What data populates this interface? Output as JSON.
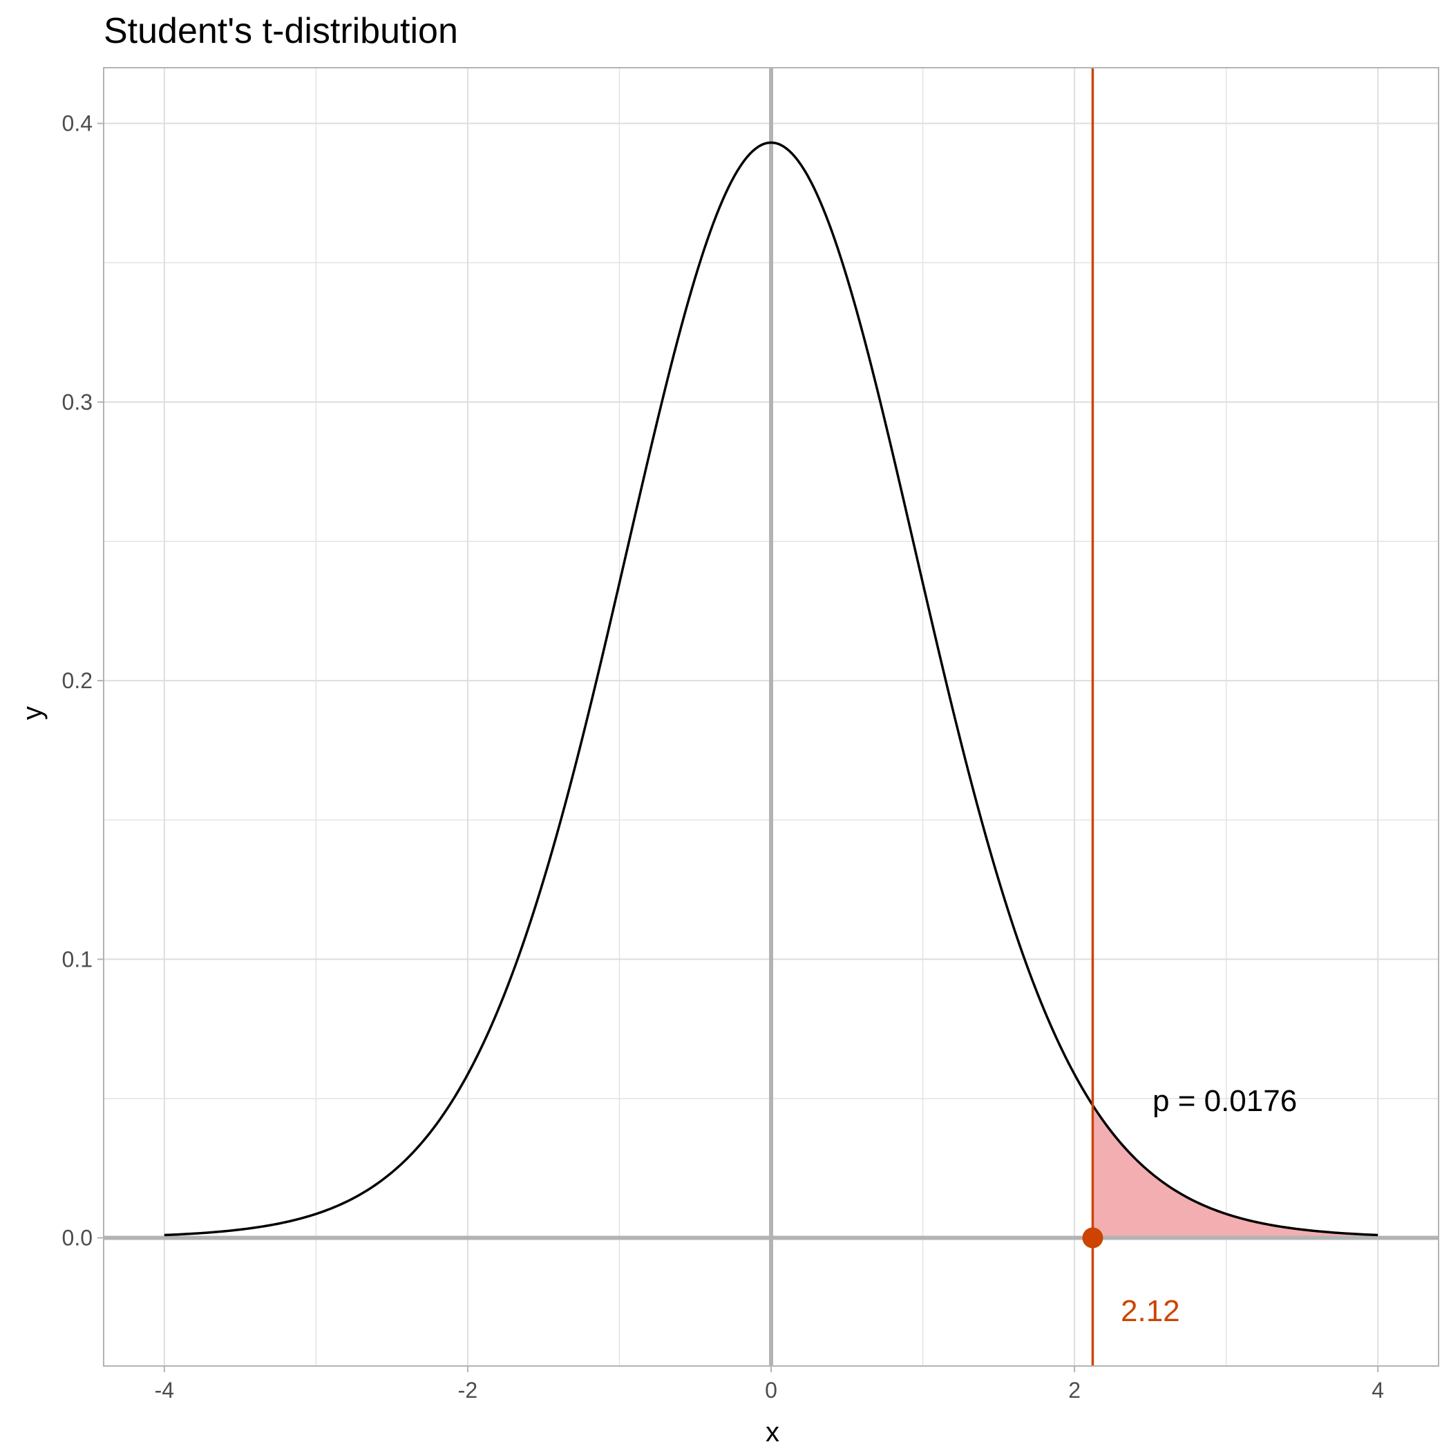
{
  "chart_data": {
    "type": "area",
    "title": "Student's t-distribution",
    "xlabel": "x",
    "ylabel": "y",
    "xlim": [
      -4.4,
      4.4
    ],
    "ylim": [
      -0.046,
      0.42
    ],
    "x_ticks": [
      -4,
      -2,
      0,
      2,
      4
    ],
    "x_tick_labels": [
      "-4",
      "-2",
      "0",
      "2",
      "4"
    ],
    "y_ticks": [
      0.0,
      0.1,
      0.2,
      0.3,
      0.4
    ],
    "y_tick_labels": [
      "0.0",
      "0.1",
      "0.2",
      "0.3",
      "0.4"
    ],
    "grid": true,
    "curve": {
      "x": [
        -4.0,
        -3.5,
        -3.0,
        -2.8,
        -2.6,
        -2.4,
        -2.2,
        -2.0,
        -1.8,
        -1.6,
        -1.4,
        -1.2,
        -1.0,
        -0.8,
        -0.6,
        -0.4,
        -0.2,
        0.0,
        0.2,
        0.4,
        0.6,
        0.8,
        1.0,
        1.2,
        1.4,
        1.6,
        1.8,
        2.0,
        2.12,
        2.2,
        2.4,
        2.6,
        2.8,
        3.0,
        3.5,
        4.0
      ],
      "y": [
        0.0003,
        0.0012,
        0.0047,
        0.0082,
        0.0139,
        0.0228,
        0.0362,
        0.0555,
        0.0804,
        0.1113,
        0.1475,
        0.1872,
        0.2283,
        0.2677,
        0.3028,
        0.3302,
        0.3477,
        0.3981,
        0.3477,
        0.3302,
        0.3028,
        0.2677,
        0.2283,
        0.1872,
        0.1475,
        0.1113,
        0.0804,
        0.0555,
        0.0424,
        0.0362,
        0.0228,
        0.0139,
        0.0082,
        0.0047,
        0.0012,
        0.0003
      ]
    },
    "critical_value": 2.12,
    "critical_value_label": "2.12",
    "p_value_label": "p = 0.0176",
    "shaded_region": {
      "from": 2.12,
      "to": 4.0
    },
    "colors": {
      "curve": "#000000",
      "critical_line": "#cc4400",
      "shade": "#f2aeb0",
      "reference_axes": "#b3b3b3",
      "grid": "#dedede",
      "panel_border": "#b3b3b3"
    }
  }
}
